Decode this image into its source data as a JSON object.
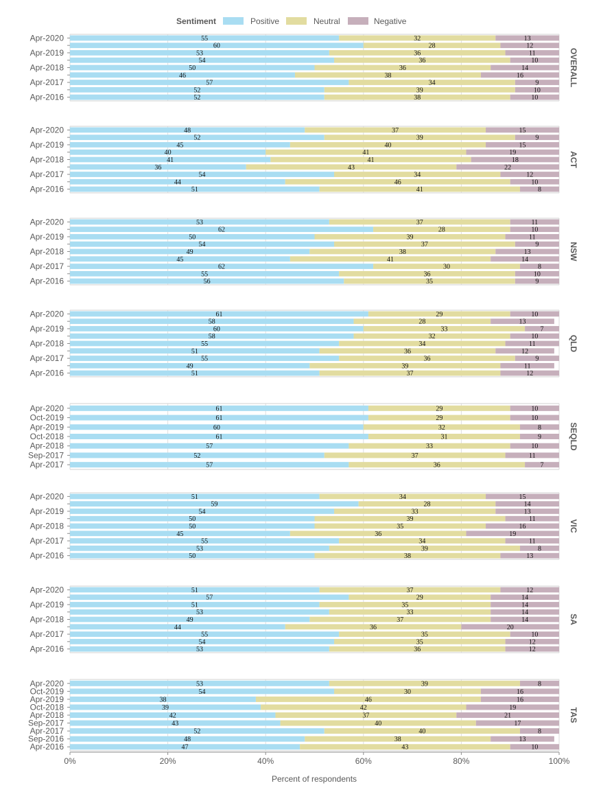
{
  "chart_data": {
    "type": "bar",
    "orientation": "horizontal-stacked",
    "xlabel": "Percent of respondents",
    "xlim": [
      0,
      100
    ],
    "xticks": [
      "0%",
      "20%",
      "40%",
      "60%",
      "80%",
      "100%"
    ],
    "legend": {
      "title": "Sentiment",
      "placement": "top",
      "entries": [
        "Positive",
        "Neutral",
        "Negative"
      ]
    },
    "series_colors": {
      "Positive": "#a9ddf2",
      "Neutral": "#e2dca0",
      "Negative": "#c6afbb"
    },
    "grid": true,
    "panels": [
      {
        "name": "OVERALL",
        "rows": [
          {
            "label": "Apr-2020",
            "values": [
              55,
              32,
              13
            ]
          },
          {
            "label": "",
            "values": [
              60,
              28,
              12
            ]
          },
          {
            "label": "Apr-2019",
            "values": [
              53,
              36,
              11
            ]
          },
          {
            "label": "",
            "values": [
              54,
              36,
              10
            ]
          },
          {
            "label": "Apr-2018",
            "values": [
              50,
              36,
              14
            ]
          },
          {
            "label": "",
            "values": [
              46,
              38,
              16
            ]
          },
          {
            "label": "Apr-2017",
            "values": [
              57,
              34,
              9
            ]
          },
          {
            "label": "",
            "values": [
              52,
              39,
              10
            ]
          },
          {
            "label": "Apr-2016",
            "values": [
              52,
              38,
              10
            ]
          }
        ]
      },
      {
        "name": "ACT",
        "rows": [
          {
            "label": "Apr-2020",
            "values": [
              48,
              37,
              15
            ]
          },
          {
            "label": "",
            "values": [
              52,
              39,
              9
            ]
          },
          {
            "label": "Apr-2019",
            "values": [
              45,
              40,
              15
            ]
          },
          {
            "label": "",
            "values": [
              40,
              41,
              19
            ]
          },
          {
            "label": "Apr-2018",
            "values": [
              41,
              41,
              18
            ]
          },
          {
            "label": "",
            "values": [
              36,
              43,
              22
            ]
          },
          {
            "label": "Apr-2017",
            "values": [
              54,
              34,
              12
            ]
          },
          {
            "label": "",
            "values": [
              44,
              46,
              10
            ]
          },
          {
            "label": "Apr-2016",
            "values": [
              51,
              41,
              8
            ]
          }
        ]
      },
      {
        "name": "NSW",
        "rows": [
          {
            "label": "Apr-2020",
            "values": [
              53,
              37,
              11
            ]
          },
          {
            "label": "",
            "values": [
              62,
              28,
              10
            ]
          },
          {
            "label": "Apr-2019",
            "values": [
              50,
              39,
              11
            ]
          },
          {
            "label": "",
            "values": [
              54,
              37,
              9
            ]
          },
          {
            "label": "Apr-2018",
            "values": [
              49,
              38,
              13
            ]
          },
          {
            "label": "",
            "values": [
              45,
              41,
              14
            ]
          },
          {
            "label": "Apr-2017",
            "values": [
              62,
              30,
              8
            ]
          },
          {
            "label": "",
            "values": [
              55,
              36,
              10
            ]
          },
          {
            "label": "Apr-2016",
            "values": [
              56,
              35,
              9
            ]
          }
        ]
      },
      {
        "name": "QLD",
        "rows": [
          {
            "label": "Apr-2020",
            "values": [
              61,
              29,
              10
            ]
          },
          {
            "label": "",
            "values": [
              58,
              28,
              13
            ]
          },
          {
            "label": "Apr-2019",
            "values": [
              60,
              33,
              7
            ]
          },
          {
            "label": "",
            "values": [
              58,
              32,
              10
            ]
          },
          {
            "label": "Apr-2018",
            "values": [
              55,
              34,
              11
            ]
          },
          {
            "label": "",
            "values": [
              51,
              36,
              12
            ]
          },
          {
            "label": "Apr-2017",
            "values": [
              55,
              36,
              9
            ]
          },
          {
            "label": "",
            "values": [
              49,
              39,
              11
            ]
          },
          {
            "label": "Apr-2016",
            "values": [
              51,
              37,
              12
            ]
          }
        ]
      },
      {
        "name": "SEQLD",
        "rows": [
          {
            "label": "Apr-2020",
            "values": [
              61,
              29,
              10
            ]
          },
          {
            "label": "Oct-2019",
            "values": [
              61,
              29,
              10
            ]
          },
          {
            "label": "Apr-2019",
            "values": [
              60,
              32,
              8
            ]
          },
          {
            "label": "Oct-2018",
            "values": [
              61,
              31,
              9
            ]
          },
          {
            "label": "Apr-2018",
            "values": [
              57,
              33,
              10
            ]
          },
          {
            "label": "Sep-2017",
            "values": [
              52,
              37,
              11
            ]
          },
          {
            "label": "Apr-2017",
            "values": [
              57,
              36,
              7
            ]
          }
        ]
      },
      {
        "name": "VIC",
        "rows": [
          {
            "label": "Apr-2020",
            "values": [
              51,
              34,
              15
            ]
          },
          {
            "label": "",
            "values": [
              59,
              28,
              14
            ]
          },
          {
            "label": "Apr-2019",
            "values": [
              54,
              33,
              13
            ]
          },
          {
            "label": "",
            "values": [
              50,
              39,
              11
            ]
          },
          {
            "label": "Apr-2018",
            "values": [
              50,
              35,
              16
            ]
          },
          {
            "label": "",
            "values": [
              45,
              36,
              19
            ]
          },
          {
            "label": "Apr-2017",
            "values": [
              55,
              34,
              11
            ]
          },
          {
            "label": "",
            "values": [
              53,
              39,
              8
            ]
          },
          {
            "label": "Apr-2016",
            "values": [
              50,
              38,
              13
            ]
          }
        ]
      },
      {
        "name": "SA",
        "rows": [
          {
            "label": "Apr-2020",
            "values": [
              51,
              37,
              12
            ]
          },
          {
            "label": "",
            "values": [
              57,
              29,
              14
            ]
          },
          {
            "label": "Apr-2019",
            "values": [
              51,
              35,
              14
            ]
          },
          {
            "label": "",
            "values": [
              53,
              33,
              14
            ]
          },
          {
            "label": "Apr-2018",
            "values": [
              49,
              37,
              14
            ]
          },
          {
            "label": "",
            "values": [
              44,
              36,
              20
            ]
          },
          {
            "label": "Apr-2017",
            "values": [
              55,
              35,
              10
            ]
          },
          {
            "label": "",
            "values": [
              54,
              35,
              12
            ]
          },
          {
            "label": "Apr-2016",
            "values": [
              53,
              36,
              12
            ]
          }
        ]
      },
      {
        "name": "TAS",
        "rows": [
          {
            "label": "Apr-2020",
            "values": [
              53,
              39,
              8
            ]
          },
          {
            "label": "Oct-2019",
            "values": [
              54,
              30,
              16
            ]
          },
          {
            "label": "Apr-2019",
            "values": [
              38,
              46,
              16
            ]
          },
          {
            "label": "Oct-2018",
            "values": [
              39,
              42,
              19
            ]
          },
          {
            "label": "Apr-2018",
            "values": [
              42,
              37,
              21
            ]
          },
          {
            "label": "Sep-2017",
            "values": [
              43,
              40,
              17
            ]
          },
          {
            "label": "Apr-2017",
            "values": [
              52,
              40,
              8
            ]
          },
          {
            "label": "Sep-2016",
            "values": [
              48,
              38,
              13
            ]
          },
          {
            "label": "Apr-2016",
            "values": [
              47,
              43,
              10
            ]
          }
        ]
      }
    ]
  }
}
